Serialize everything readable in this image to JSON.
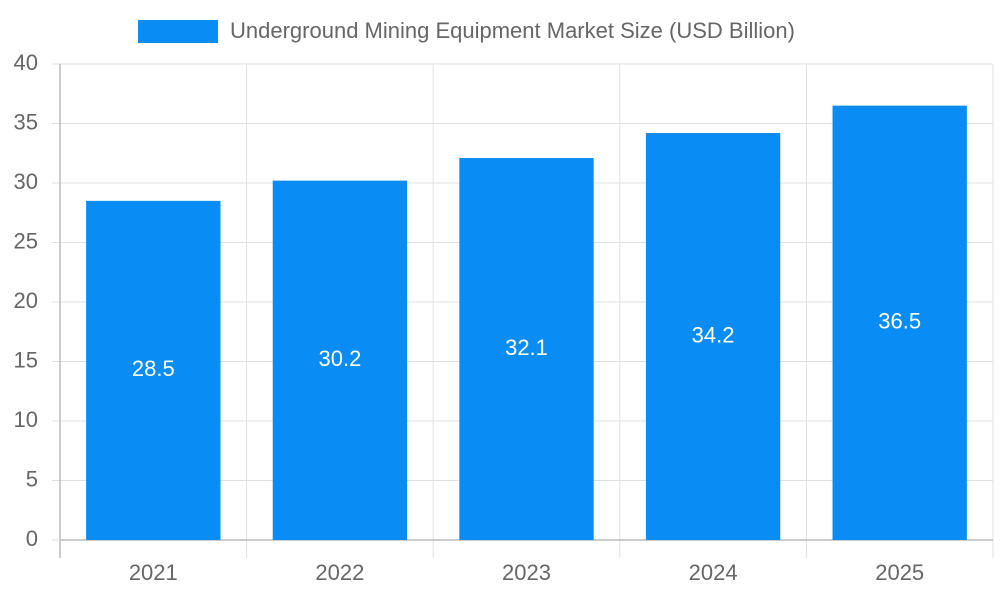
{
  "chart_data": {
    "type": "bar",
    "categories": [
      "2021",
      "2022",
      "2023",
      "2024",
      "2025"
    ],
    "series": [
      {
        "name": "Underground Mining Equipment Market Size (USD Billion)",
        "color": "#0a8cf5",
        "values": [
          28.5,
          30.2,
          32.1,
          34.2,
          36.5
        ]
      }
    ],
    "ylim": [
      0,
      40
    ],
    "yticks": [
      0,
      5,
      10,
      15,
      20,
      25,
      30,
      35,
      40
    ],
    "grid": true,
    "legend": "top"
  }
}
